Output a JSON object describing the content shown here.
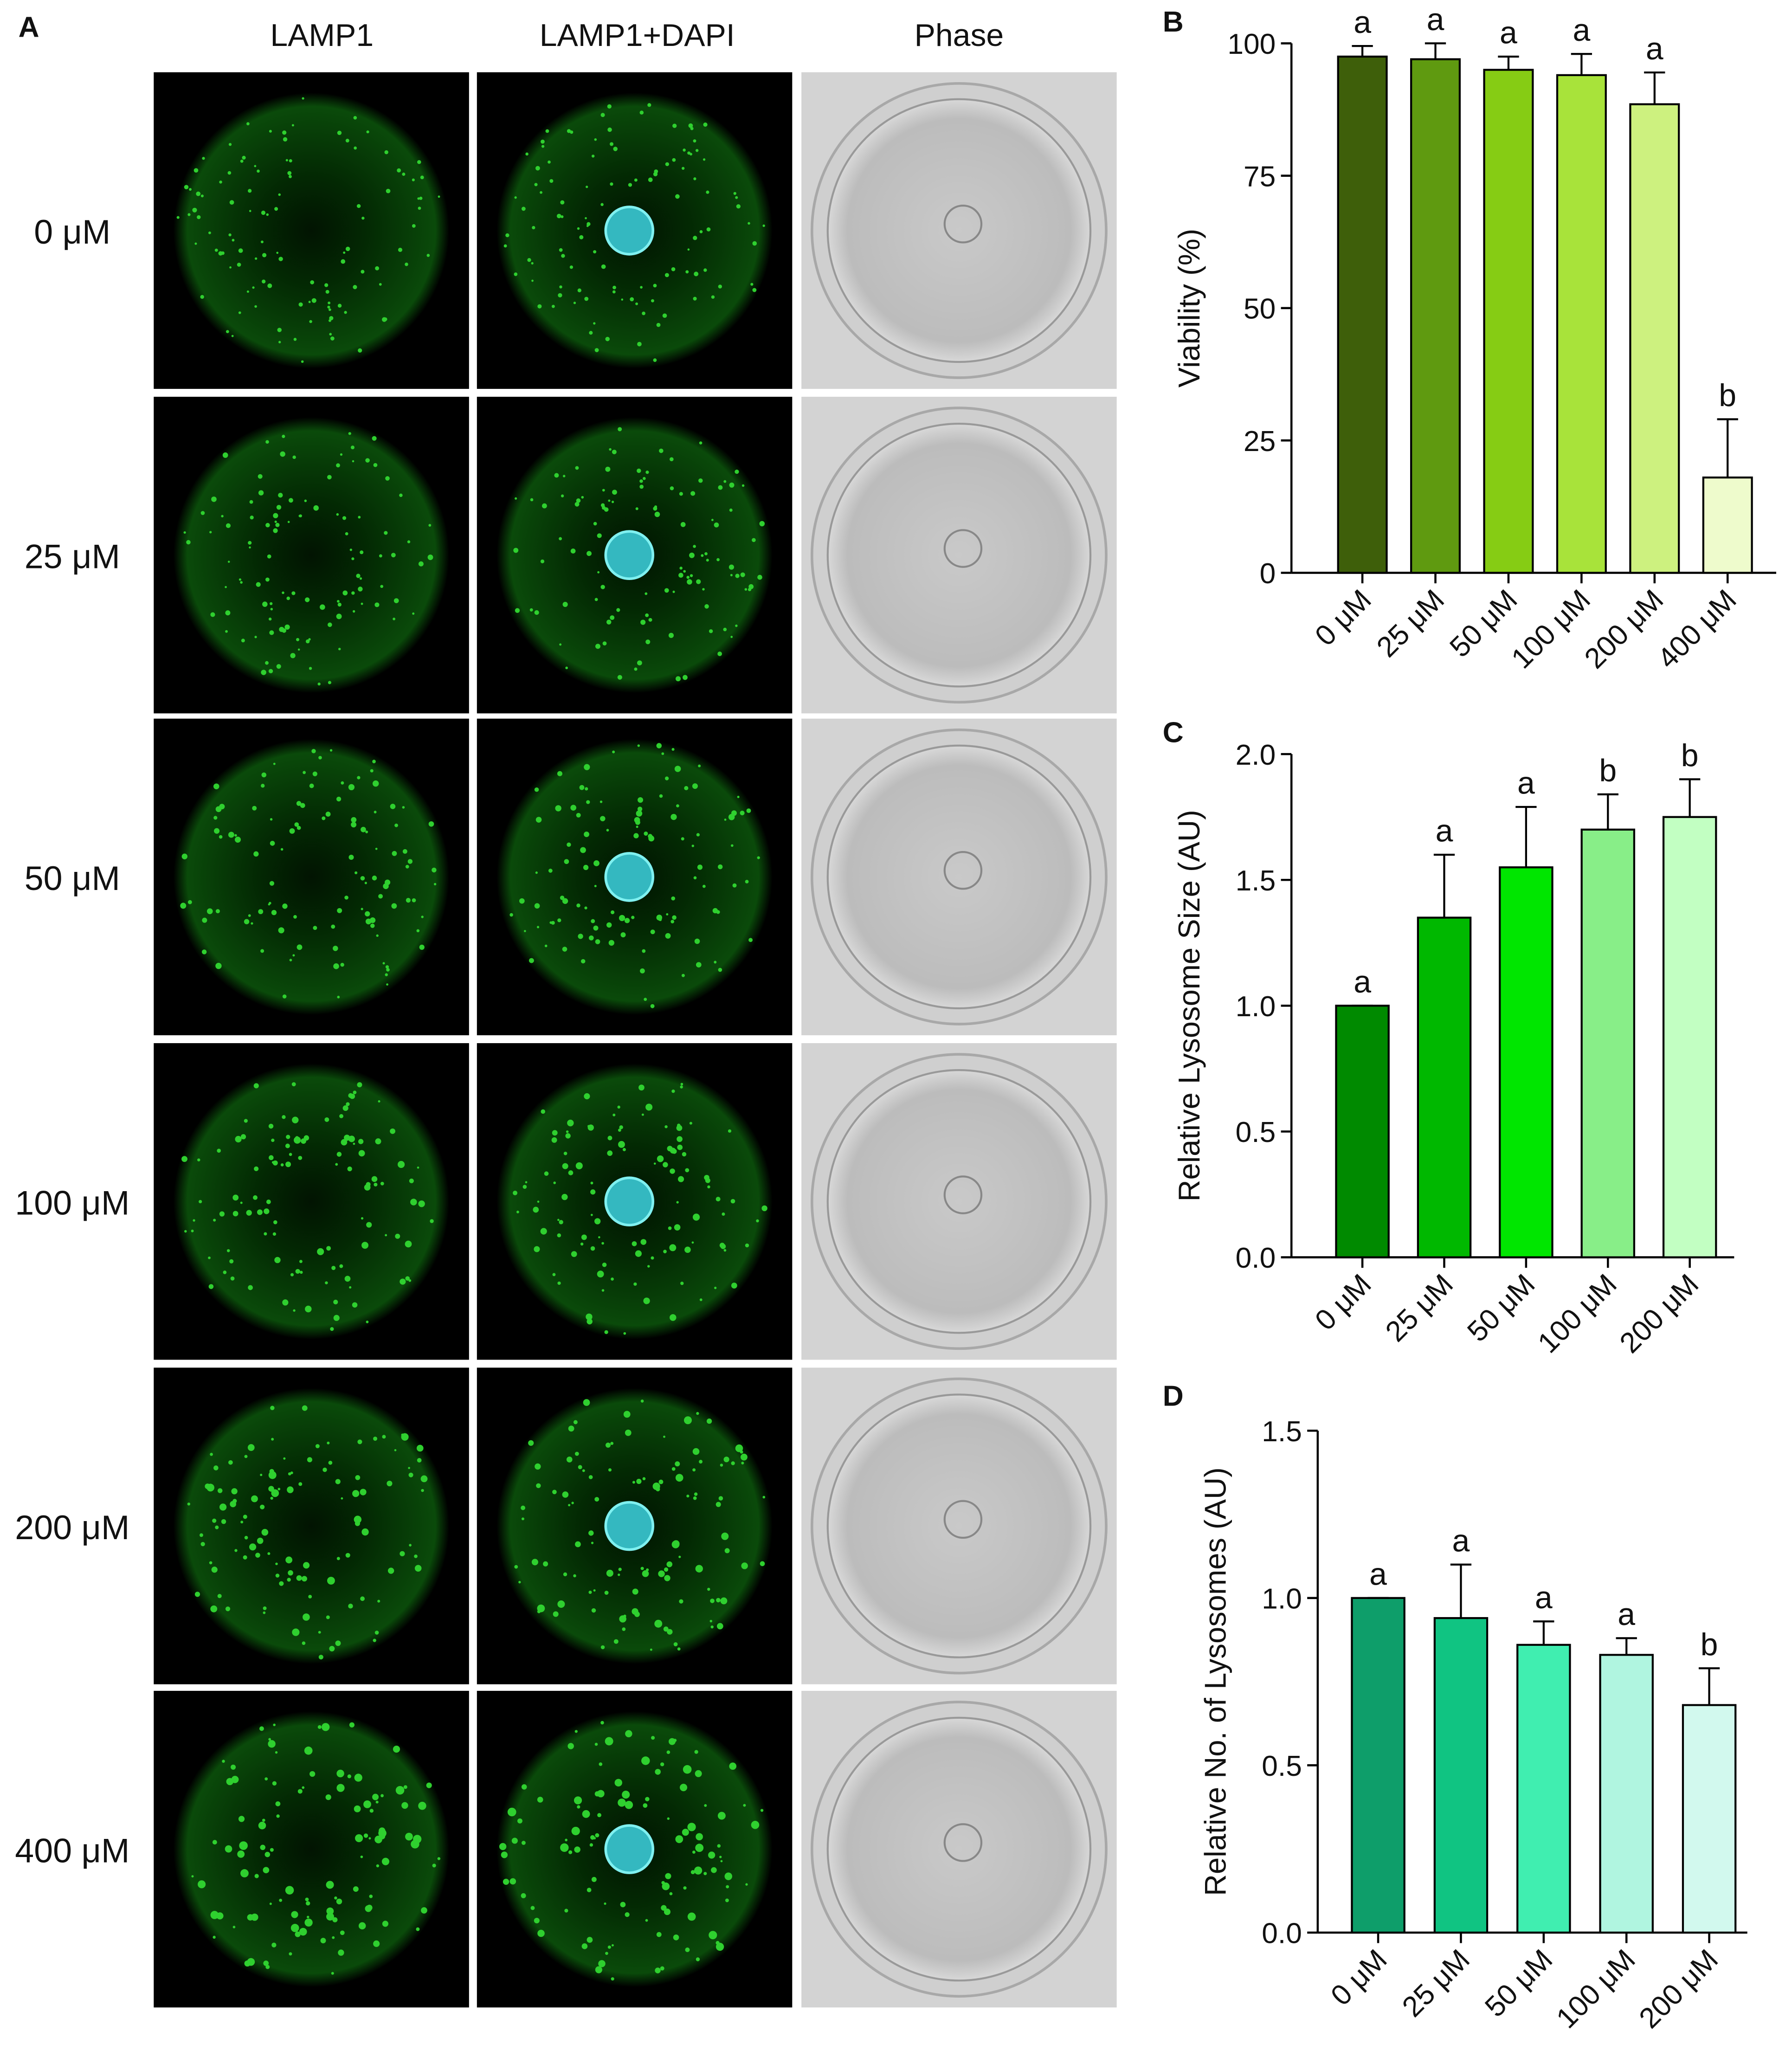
{
  "panel_a": {
    "label": "A",
    "columns": [
      "LAMP1",
      "LAMP1+DAPI",
      "Phase"
    ],
    "rows": [
      "0 μM",
      "25 μM",
      "50 μM",
      "100 μM",
      "200 μM",
      "400 μM"
    ]
  },
  "chart_data": [
    {
      "type": "bar",
      "panel": "B",
      "ylabel": "Viability (%)",
      "categories": [
        "0 μM",
        "25 μM",
        "50 μM",
        "100 μM",
        "200 μM",
        "400 μM"
      ],
      "values": [
        97.5,
        97,
        95,
        94,
        88.5,
        18
      ],
      "errors": [
        2,
        3,
        2.5,
        4,
        6,
        11
      ],
      "colors": [
        "#3e5f0a",
        "#5f9a10",
        "#86cc14",
        "#a8e33a",
        "#cdf17f",
        "#eefbcc"
      ],
      "annotations": [
        "a",
        "a",
        "a",
        "a",
        "a",
        "b"
      ],
      "ylim": [
        0,
        100
      ],
      "yticks": [
        0,
        25,
        50,
        75,
        100
      ]
    },
    {
      "type": "bar",
      "panel": "C",
      "ylabel": "Relative Lysosome Size (AU)",
      "categories": [
        "0 μM",
        "25 μM",
        "50 μM",
        "100 μM",
        "200 μM"
      ],
      "values": [
        1.0,
        1.35,
        1.55,
        1.7,
        1.75
      ],
      "errors": [
        0,
        0.25,
        0.24,
        0.14,
        0.15
      ],
      "colors": [
        "#008a00",
        "#00b800",
        "#00e600",
        "#88ee88",
        "#c2ffc2"
      ],
      "annotations": [
        "a",
        "a",
        "a",
        "b",
        "b"
      ],
      "ylim": [
        0,
        2
      ],
      "yticks": [
        {
          "value": 0,
          "label": "0.0"
        },
        0.5,
        {
          "value": 1,
          "label": "1.0"
        },
        1.5,
        {
          "value": 2,
          "label": "2.0"
        }
      ]
    },
    {
      "type": "bar",
      "panel": "D",
      "ylabel": "Relative No. of Lysosomes (AU)",
      "categories": [
        "0 μM",
        "25 μM",
        "50 μM",
        "100 μM",
        "200 μM"
      ],
      "values": [
        1.0,
        0.94,
        0.86,
        0.83,
        0.68
      ],
      "errors": [
        0,
        0.16,
        0.07,
        0.05,
        0.11
      ],
      "colors": [
        "#0e9e6a",
        "#10c482",
        "#40eeb0",
        "#b0f5e0",
        "#d2f9ee"
      ],
      "annotations": [
        "a",
        "a",
        "a",
        "a",
        "b"
      ],
      "ylim": [
        0,
        1.5
      ],
      "yticks": [
        {
          "value": 0,
          "label": "0.0"
        },
        0.5,
        {
          "value": 1,
          "label": "1.0"
        },
        1.5
      ]
    }
  ]
}
